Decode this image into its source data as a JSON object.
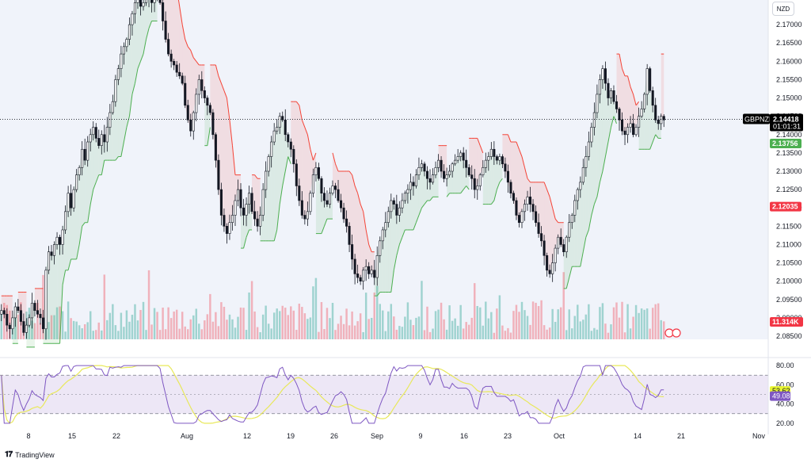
{
  "currency_badge": "NZD",
  "brand": "TradingView",
  "colors": {
    "up": "#089981",
    "down": "#f23645",
    "supertrend_up": "#4caf50",
    "supertrend_down": "#f44336",
    "rsi_line": "#7e57c2",
    "rsi_ma": "#e8e85a",
    "rsi_band": "#ede7f6",
    "last_price_label": "#000000",
    "support_label": "#4caf50",
    "resistance_label": "#f23645",
    "volume_label": "#f23645",
    "rsi_label_1": "#e8f531",
    "rsi_label_2": "#7e57c2"
  },
  "chart_data": [
    {
      "type": "candlestick",
      "symbol": "GBPNZD",
      "ylim": [
        2.085,
        2.175
      ],
      "price_ticks": [
        "2.17000",
        "2.16500",
        "2.16000",
        "2.15500",
        "2.15000",
        "2.14500",
        "2.14000",
        "2.13500",
        "2.13000",
        "2.12500",
        "2.12000",
        "2.11500",
        "2.11000",
        "2.10500",
        "2.10000",
        "2.09500",
        "2.09000",
        "2.08500"
      ],
      "x_labels": [
        "8",
        "15",
        "22",
        "Aug",
        "12",
        "19",
        "26",
        "Sep",
        "9",
        "16",
        "23",
        "Oct",
        "14",
        "21",
        "Nov"
      ],
      "last_price": {
        "symbol": "GBPNZD",
        "value": "2.14418",
        "countdown": "01:01:31"
      },
      "supertrend_label": "2.13756",
      "resistance_label": "2.12035",
      "volume_label": "11.314K",
      "close_series": [
        2.092,
        2.091,
        2.088,
        2.087,
        2.09,
        2.093,
        2.092,
        2.089,
        2.086,
        2.088,
        2.09,
        2.094,
        2.092,
        2.091,
        2.09,
        2.087,
        2.103,
        2.108,
        2.107,
        2.11,
        2.112,
        2.11,
        2.114,
        2.119,
        2.124,
        2.12,
        2.125,
        2.129,
        2.131,
        2.136,
        2.133,
        2.138,
        2.14,
        2.142,
        2.139,
        2.137,
        2.14,
        2.138,
        2.142,
        2.146,
        2.149,
        2.155,
        2.158,
        2.162,
        2.164,
        2.166,
        2.17,
        2.173,
        2.176,
        2.177,
        2.175,
        2.176,
        2.178,
        2.177,
        2.176,
        2.178,
        2.177,
        2.176,
        2.171,
        2.166,
        2.162,
        2.16,
        2.159,
        2.157,
        2.156,
        2.154,
        2.148,
        2.144,
        2.141,
        2.146,
        2.151,
        2.155,
        2.152,
        2.15,
        2.148,
        2.146,
        2.14,
        2.133,
        2.125,
        2.118,
        2.115,
        2.113,
        2.116,
        2.118,
        2.122,
        2.125,
        2.12,
        2.118,
        2.121,
        2.124,
        2.119,
        2.117,
        2.115,
        2.118,
        2.125,
        2.13,
        2.134,
        2.138,
        2.141,
        2.142,
        2.145,
        2.144,
        2.14,
        2.138,
        2.136,
        2.132,
        2.126,
        2.122,
        2.118,
        2.117,
        2.119,
        2.124,
        2.129,
        2.131,
        2.128,
        2.124,
        2.122,
        2.121,
        2.124,
        2.126,
        2.125,
        2.122,
        2.12,
        2.117,
        2.115,
        2.11,
        2.106,
        2.102,
        2.101,
        2.1,
        2.103,
        2.104,
        2.102,
        2.103,
        2.101,
        2.107,
        2.111,
        2.114,
        2.116,
        2.119,
        2.122,
        2.121,
        2.118,
        2.12,
        2.122,
        2.124,
        2.125,
        2.127,
        2.126,
        2.129,
        2.131,
        2.132,
        2.13,
        2.128,
        2.127,
        2.129,
        2.131,
        2.133,
        2.13,
        2.128,
        2.129,
        2.13,
        2.132,
        2.133,
        2.134,
        2.135,
        2.133,
        2.131,
        2.129,
        2.128,
        2.125,
        2.126,
        2.129,
        2.131,
        2.133,
        2.134,
        2.136,
        2.134,
        2.133,
        2.134,
        2.132,
        2.13,
        2.127,
        2.124,
        2.122,
        2.118,
        2.116,
        2.119,
        2.121,
        2.123,
        2.121,
        2.119,
        2.116,
        2.113,
        2.111,
        2.107,
        2.103,
        2.102,
        2.105,
        2.109,
        2.112,
        2.11,
        2.108,
        2.112,
        2.116,
        2.118,
        2.122,
        2.125,
        2.127,
        2.131,
        2.134,
        2.138,
        2.142,
        2.146,
        2.151,
        2.155,
        2.158,
        2.154,
        2.15,
        2.152,
        2.149,
        2.147,
        2.144,
        2.141,
        2.14,
        2.142,
        2.143,
        2.14,
        2.142,
        2.145,
        2.147,
        2.151,
        2.158,
        2.152,
        2.148,
        2.144,
        2.143,
        2.145,
        2.144
      ]
    },
    {
      "type": "line",
      "name": "RSI",
      "ylim": [
        15,
        85
      ],
      "ticks": [
        "80.00",
        "60.00",
        "40.00",
        "20.00"
      ],
      "bands": [
        70,
        30
      ],
      "labels": [
        "53.62",
        "49.08"
      ]
    }
  ]
}
